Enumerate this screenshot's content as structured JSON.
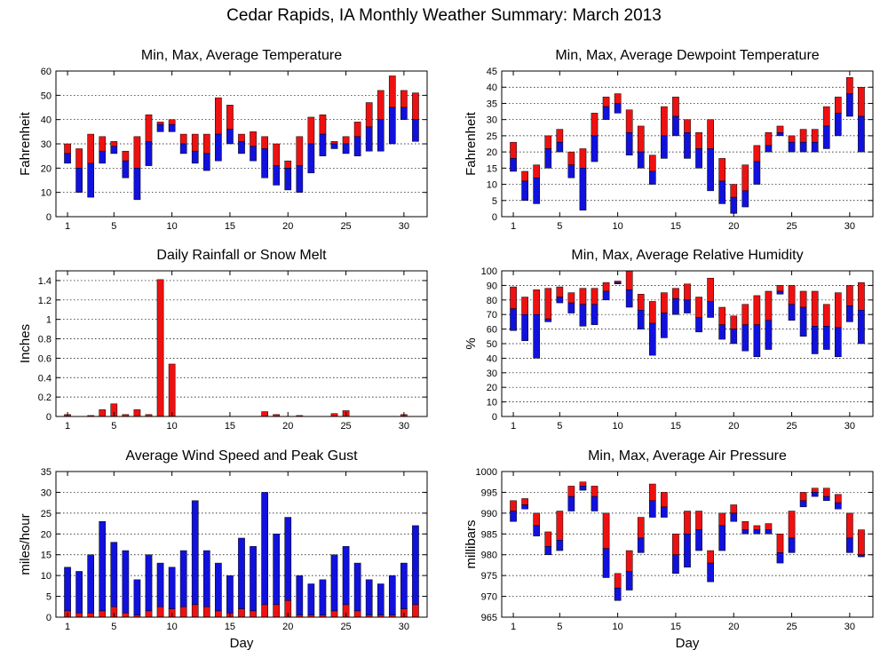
{
  "page": {
    "title": "Cedar Rapids, IA Monthly Weather Summary: March 2013"
  },
  "colors": {
    "upper": "#ee1111",
    "lower": "#1111dd",
    "grid": "#000000"
  },
  "chart_data": [
    {
      "id": "temperature",
      "type": "bar",
      "title": "Min, Max, Average Temperature",
      "xlabel": "",
      "ylabel": "Fahrenheit",
      "xlim": [
        0,
        32
      ],
      "ylim": [
        0,
        60
      ],
      "xticks": [
        1,
        5,
        10,
        15,
        20,
        25,
        30
      ],
      "yticks": [
        0,
        10,
        20,
        30,
        40,
        50,
        60
      ],
      "grid": true,
      "series": [
        {
          "key": "max",
          "values": [
            30,
            28,
            34,
            33,
            31,
            27,
            33,
            42,
            39,
            40,
            34,
            34,
            34,
            49,
            46,
            34,
            35,
            33,
            30,
            23,
            33,
            41,
            42,
            31,
            33,
            39,
            47,
            52,
            58,
            52,
            51
          ]
        },
        {
          "key": "avg",
          "values": [
            26,
            20,
            22,
            27,
            29,
            23,
            20,
            31,
            38,
            38,
            30,
            27,
            26,
            34,
            36,
            31,
            29,
            28,
            21,
            20,
            21,
            30,
            34,
            30,
            30,
            33,
            37,
            40,
            45,
            45,
            40
          ]
        },
        {
          "key": "min",
          "values": [
            22,
            10,
            8,
            22,
            26,
            16,
            7,
            21,
            35,
            35,
            26,
            22,
            19,
            23,
            30,
            26,
            23,
            16,
            13,
            11,
            10,
            18,
            25,
            28,
            26,
            25,
            27,
            27,
            30,
            40,
            31
          ]
        }
      ]
    },
    {
      "id": "dewpoint",
      "type": "bar",
      "title": "Min, Max, Average Dewpoint Temperature",
      "xlabel": "",
      "ylabel": "Fahrenheit",
      "xlim": [
        0,
        32
      ],
      "ylim": [
        0,
        45
      ],
      "xticks": [
        1,
        5,
        10,
        15,
        20,
        25,
        30
      ],
      "yticks": [
        0,
        5,
        10,
        15,
        20,
        25,
        30,
        35,
        40,
        45
      ],
      "grid": true,
      "series": [
        {
          "key": "max",
          "values": [
            23,
            14,
            16,
            25,
            27,
            20,
            21,
            32,
            37,
            38,
            33,
            28,
            19,
            34,
            37,
            30,
            26,
            30,
            18,
            10,
            16,
            22,
            26,
            28,
            25,
            27,
            27,
            34,
            37,
            43,
            40
          ]
        },
        {
          "key": "avg",
          "values": [
            18,
            11,
            12,
            21,
            23,
            16,
            15,
            25,
            34,
            35,
            26,
            20,
            14,
            25,
            31,
            26,
            21,
            21,
            11,
            6,
            8,
            17,
            22,
            26,
            23,
            23,
            23,
            28,
            32,
            38,
            31
          ]
        },
        {
          "key": "min",
          "values": [
            14,
            5,
            4,
            15,
            20,
            12,
            2,
            17,
            30,
            32,
            19,
            15,
            10,
            18,
            25,
            18,
            15,
            8,
            4,
            1,
            3,
            10,
            20,
            25,
            20,
            20,
            20,
            21,
            25,
            31,
            20
          ]
        }
      ]
    },
    {
      "id": "rainfall",
      "type": "bar",
      "title": "Daily Rainfall or Snow Melt",
      "xlabel": "",
      "ylabel": "Inches",
      "xlim": [
        0,
        32
      ],
      "ylim": [
        0,
        1.5
      ],
      "xticks": [
        1,
        5,
        10,
        15,
        20,
        25,
        30
      ],
      "yticks": [
        0,
        0.2,
        0.4,
        0.6,
        0.8,
        1,
        1.2,
        1.4
      ],
      "grid": true,
      "series": [
        {
          "key": "precip",
          "values": [
            0.02,
            0,
            0.01,
            0.07,
            0.13,
            0.02,
            0.07,
            0.02,
            1.41,
            0.54,
            0,
            0,
            0,
            0,
            0,
            0,
            0,
            0.05,
            0.02,
            0,
            0.01,
            0,
            0,
            0.03,
            0.06,
            0,
            0,
            0,
            0,
            0.02,
            0
          ]
        }
      ]
    },
    {
      "id": "humidity",
      "type": "bar",
      "title": "Min, Max, Average Relative Humidity",
      "xlabel": "",
      "ylabel": "%",
      "xlim": [
        0,
        32
      ],
      "ylim": [
        0,
        100
      ],
      "xticks": [
        1,
        5,
        10,
        15,
        20,
        25,
        30
      ],
      "yticks": [
        0,
        10,
        20,
        30,
        40,
        50,
        60,
        70,
        80,
        90,
        100
      ],
      "grid": true,
      "series": [
        {
          "key": "max",
          "values": [
            89,
            82,
            87,
            88,
            89,
            85,
            88,
            88,
            92,
            93,
            100,
            84,
            79,
            85,
            88,
            91,
            82,
            95,
            75,
            69,
            77,
            83,
            86,
            90,
            90,
            86,
            86,
            77,
            85,
            90,
            92
          ]
        },
        {
          "key": "avg",
          "values": [
            74,
            70,
            70,
            67,
            82,
            78,
            77,
            77,
            86,
            92,
            87,
            73,
            64,
            71,
            81,
            80,
            68,
            79,
            63,
            60,
            63,
            63,
            66,
            86,
            77,
            75,
            62,
            62,
            61,
            76,
            73
          ]
        },
        {
          "key": "min",
          "values": [
            59,
            52,
            40,
            65,
            78,
            71,
            62,
            63,
            80,
            91,
            75,
            60,
            42,
            54,
            70,
            71,
            58,
            68,
            53,
            50,
            45,
            41,
            46,
            84,
            66,
            55,
            43,
            46,
            41,
            65,
            50
          ]
        }
      ]
    },
    {
      "id": "wind",
      "type": "bar",
      "title": "Average Wind Speed and Peak Gust",
      "xlabel": "Day",
      "ylabel": "miles/hour",
      "xlim": [
        0,
        32
      ],
      "ylim": [
        0,
        35
      ],
      "xticks": [
        1,
        5,
        10,
        15,
        20,
        25,
        30
      ],
      "yticks": [
        0,
        5,
        10,
        15,
        20,
        25,
        30,
        35
      ],
      "grid": true,
      "series": [
        {
          "key": "gust",
          "values": [
            12,
            11,
            15,
            23,
            18,
            16,
            9,
            15,
            13,
            12,
            16,
            28,
            16,
            13,
            10,
            19,
            17,
            30,
            20,
            24,
            10,
            8,
            9,
            15,
            17,
            13,
            9,
            8,
            10,
            13,
            22
          ]
        },
        {
          "key": "avg",
          "values": [
            1.5,
            1,
            1,
            1.5,
            2.5,
            1,
            0.5,
            1.5,
            2.5,
            2,
            2.5,
            3,
            2.5,
            1.5,
            1,
            2,
            1.5,
            3,
            3,
            4,
            0.5,
            0.5,
            0.5,
            1.5,
            3,
            1.5,
            0.5,
            0.5,
            0.5,
            2,
            3
          ]
        }
      ]
    },
    {
      "id": "pressure",
      "type": "bar",
      "title": "Min, Max, Average Air Pressure",
      "xlabel": "Day",
      "ylabel": "millibars",
      "xlim": [
        0,
        32
      ],
      "ylim": [
        965,
        1000
      ],
      "xticks": [
        1,
        5,
        10,
        15,
        20,
        25,
        30
      ],
      "yticks": [
        965,
        970,
        975,
        980,
        985,
        990,
        995,
        1000
      ],
      "grid": true,
      "series": [
        {
          "key": "max",
          "values": [
            993,
            993.5,
            990,
            985.5,
            990.5,
            996.5,
            997.5,
            996.5,
            990,
            975.5,
            981,
            989,
            997,
            995,
            985,
            990.5,
            990.5,
            981,
            990,
            992,
            988,
            987,
            987.5,
            985,
            990.5,
            995,
            996,
            996,
            994.5,
            990,
            986
          ]
        },
        {
          "key": "avg",
          "values": [
            990.5,
            992,
            987,
            982,
            983.5,
            994,
            996.5,
            994,
            981.5,
            972,
            976,
            984,
            993,
            991.5,
            980,
            985,
            986,
            978,
            987,
            990,
            986,
            986,
            986,
            980.5,
            984,
            993,
            995,
            994,
            992.5,
            984,
            980
          ]
        },
        {
          "key": "min",
          "values": [
            988,
            991,
            984.5,
            980,
            981,
            990.5,
            995.5,
            990.5,
            974.5,
            969,
            971.5,
            980.5,
            989,
            989,
            975.5,
            977,
            981,
            973.5,
            981,
            988,
            985,
            985,
            985,
            978,
            980.5,
            991.5,
            994,
            993,
            991,
            980.5,
            979.5
          ]
        }
      ]
    }
  ]
}
